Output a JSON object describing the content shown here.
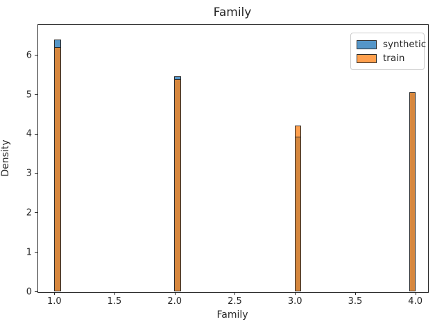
{
  "figure_title": "Family",
  "chart_data": {
    "type": "bar",
    "subtype": "overlaid-histogram",
    "title": "Family",
    "xlabel": "Family",
    "ylabel": "Density",
    "x": [
      1.0,
      1.998,
      2.997,
      3.948
    ],
    "bin_width": 0.054,
    "series": [
      {
        "name": "synthetic",
        "color": "#5596c8",
        "values": [
          6.4,
          5.46,
          3.94,
          5.06
        ]
      },
      {
        "name": "train",
        "color": "#ffa04e",
        "values": [
          6.22,
          5.41,
          4.21,
          5.06
        ]
      }
    ],
    "overlap_color": "#d6873e",
    "edge_color": "#2b2b2b",
    "xlim": [
      0.86,
      4.1
    ],
    "ylim": [
      0,
      6.78
    ],
    "xticks": [
      1.0,
      1.5,
      2.0,
      2.5,
      3.0,
      3.5,
      4.0
    ],
    "xtick_labels": [
      "1.0",
      "1.5",
      "2.0",
      "2.5",
      "3.0",
      "3.5",
      "4.0"
    ],
    "yticks": [
      0,
      1,
      2,
      3,
      4,
      5,
      6
    ],
    "ytick_labels": [
      "0",
      "1",
      "2",
      "3",
      "4",
      "5",
      "6"
    ],
    "legend": {
      "position": "upper right",
      "entries": [
        "synthetic",
        "train"
      ]
    },
    "grid": false
  }
}
